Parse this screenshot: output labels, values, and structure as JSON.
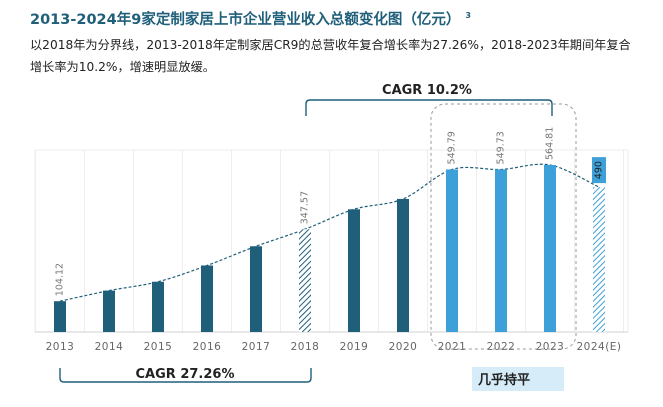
{
  "title": "2013-2024年9家定制家居上市企业营业收入总额变化图（亿元）",
  "title_sup": "3",
  "description": "以2018年为分界线，2013-2018年定制家居CR9的总营收年复合增长率为27.26%，2018-2023年期间年复合增长率为10.2%，增速明显放缓。",
  "colors": {
    "dark": "#1f5f7a",
    "light": "#3ea0d8",
    "trend": "#1f5f7a"
  },
  "chart_data": {
    "type": "bar",
    "categories": [
      "2013",
      "2014",
      "2015",
      "2016",
      "2017",
      "2018",
      "2019",
      "2020",
      "2021",
      "2022",
      "2023",
      "2024(E)"
    ],
    "values": [
      104.12,
      140,
      170,
      225,
      290,
      347.57,
      415,
      450,
      549.79,
      549.73,
      564.81,
      490
    ],
    "data_labels": [
      "104.12",
      "",
      "",
      "",
      "",
      "347.57",
      "",
      "",
      "549.79",
      "549.73",
      "564.81",
      "490"
    ],
    "bar_styles": [
      "dark",
      "dark",
      "dark",
      "dark",
      "dark",
      "hatched-dark",
      "dark",
      "dark",
      "light",
      "light",
      "light",
      "hatched-light"
    ],
    "ylim": [
      0,
      600
    ],
    "grid": true,
    "annotations": {
      "cagr_top": "CAGR 10.2%",
      "cagr_bottom": "CAGR 27.26%",
      "flat": "几乎持平"
    }
  }
}
